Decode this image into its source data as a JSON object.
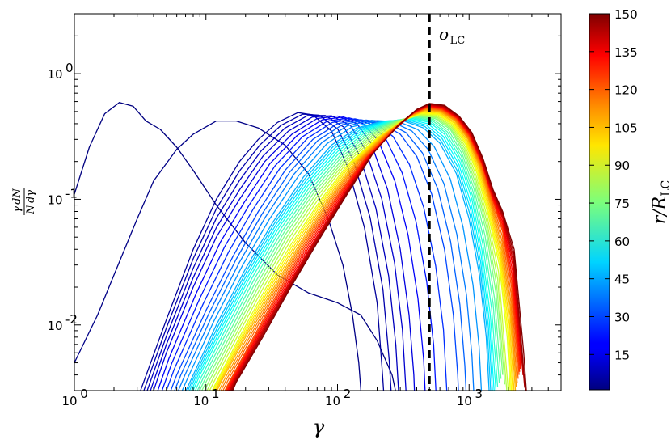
{
  "chart_data": {
    "type": "line",
    "xscale": "log",
    "yscale": "log",
    "xlim": [
      1,
      5000
    ],
    "ylim": [
      0.003,
      3
    ],
    "xlabel": "γ",
    "ylabel": "(γ/N) dN/dγ",
    "x_ticks": [
      {
        "value": 1,
        "label": "10",
        "exp": "0"
      },
      {
        "value": 10,
        "label": "10",
        "exp": "1"
      },
      {
        "value": 100,
        "label": "10",
        "exp": "2"
      },
      {
        "value": 1000,
        "label": "10",
        "exp": "3"
      }
    ],
    "y_ticks": [
      {
        "value": 0.01,
        "label": "10",
        "exp": "-2"
      },
      {
        "value": 0.1,
        "label": "10",
        "exp": "-1"
      },
      {
        "value": 1,
        "label": "10",
        "exp": "0"
      }
    ],
    "annotation": {
      "text": "σ",
      "subscript": "LC",
      "x": 500,
      "style": "dashed vertical line"
    },
    "colorbar": {
      "label": "r/R_LC",
      "label_main": "r/R",
      "label_sub": "LC",
      "colormap": "jet",
      "range": [
        1,
        150
      ],
      "ticks": [
        "15",
        "30",
        "45",
        "60",
        "75",
        "90",
        "105",
        "120",
        "135",
        "150"
      ]
    },
    "series": [
      {
        "r": 1,
        "points": [
          [
            1,
            0.11
          ],
          [
            1.3,
            0.26
          ],
          [
            1.7,
            0.48
          ],
          [
            2.2,
            0.59
          ],
          [
            2.8,
            0.55
          ],
          [
            3.5,
            0.42
          ],
          [
            4.5,
            0.36
          ],
          [
            6,
            0.26
          ],
          [
            8,
            0.17
          ],
          [
            12,
            0.09
          ],
          [
            20,
            0.045
          ],
          [
            35,
            0.025
          ],
          [
            60,
            0.018
          ],
          [
            100,
            0.015
          ],
          [
            150,
            0.012
          ],
          [
            200,
            0.0075
          ],
          [
            260,
            0.004
          ],
          [
            300,
            0.002
          ]
        ]
      },
      {
        "r": 2,
        "points": [
          [
            1,
            0.005
          ],
          [
            1.5,
            0.012
          ],
          [
            2,
            0.025
          ],
          [
            3,
            0.07
          ],
          [
            4,
            0.14
          ],
          [
            6,
            0.25
          ],
          [
            8,
            0.33
          ],
          [
            12,
            0.42
          ],
          [
            17,
            0.42
          ],
          [
            25,
            0.37
          ],
          [
            40,
            0.27
          ],
          [
            60,
            0.16
          ],
          [
            85,
            0.07
          ],
          [
            110,
            0.03
          ],
          [
            130,
            0.012
          ],
          [
            145,
            0.005
          ],
          [
            155,
            0.002
          ]
        ]
      },
      {
        "r": 5,
        "points": [
          [
            2.5,
            0.0015
          ],
          [
            5,
            0.011
          ],
          [
            8,
            0.04
          ],
          [
            12,
            0.1
          ],
          [
            18,
            0.2
          ],
          [
            25,
            0.3
          ],
          [
            35,
            0.41
          ],
          [
            50,
            0.49
          ],
          [
            65,
            0.47
          ],
          [
            90,
            0.35
          ],
          [
            120,
            0.18
          ],
          [
            160,
            0.06
          ],
          [
            200,
            0.015
          ],
          [
            220,
            0.004
          ],
          [
            240,
            0.001
          ]
        ]
      },
      {
        "r": 15,
        "points": [
          [
            3.2,
            0.0015
          ],
          [
            5,
            0.006
          ],
          [
            8,
            0.02
          ],
          [
            12,
            0.05
          ],
          [
            18,
            0.1
          ],
          [
            28,
            0.2
          ],
          [
            45,
            0.33
          ],
          [
            70,
            0.44
          ],
          [
            100,
            0.46
          ],
          [
            140,
            0.4
          ],
          [
            180,
            0.28
          ],
          [
            240,
            0.12
          ],
          [
            300,
            0.04
          ],
          [
            350,
            0.012
          ],
          [
            380,
            0.004
          ],
          [
            400,
            0.001
          ]
        ]
      },
      {
        "r": 30,
        "points": [
          [
            4.2,
            0.0015
          ],
          [
            6,
            0.004
          ],
          [
            10,
            0.013
          ],
          [
            16,
            0.035
          ],
          [
            25,
            0.08
          ],
          [
            40,
            0.17
          ],
          [
            65,
            0.3
          ],
          [
            100,
            0.4
          ],
          [
            150,
            0.43
          ],
          [
            220,
            0.4
          ],
          [
            300,
            0.33
          ],
          [
            400,
            0.22
          ],
          [
            520,
            0.11
          ],
          [
            650,
            0.04
          ],
          [
            760,
            0.012
          ],
          [
            820,
            0.004
          ],
          [
            870,
            0.001
          ]
        ]
      },
      {
        "r": 45,
        "points": [
          [
            5.2,
            0.0015
          ],
          [
            8,
            0.004
          ],
          [
            12,
            0.01
          ],
          [
            20,
            0.028
          ],
          [
            32,
            0.065
          ],
          [
            55,
            0.15
          ],
          [
            90,
            0.27
          ],
          [
            140,
            0.37
          ],
          [
            220,
            0.42
          ],
          [
            320,
            0.42
          ],
          [
            450,
            0.37
          ],
          [
            600,
            0.28
          ],
          [
            800,
            0.16
          ],
          [
            1000,
            0.07
          ],
          [
            1200,
            0.025
          ],
          [
            1350,
            0.008
          ],
          [
            1450,
            0.002
          ]
        ]
      },
      {
        "r": 60,
        "points": [
          [
            6,
            0.0015
          ],
          [
            9,
            0.004
          ],
          [
            14,
            0.01
          ],
          [
            22,
            0.025
          ],
          [
            36,
            0.06
          ],
          [
            60,
            0.13
          ],
          [
            100,
            0.24
          ],
          [
            160,
            0.35
          ],
          [
            250,
            0.42
          ],
          [
            360,
            0.44
          ],
          [
            500,
            0.41
          ],
          [
            650,
            0.33
          ],
          [
            850,
            0.2
          ],
          [
            1050,
            0.1
          ],
          [
            1250,
            0.04
          ],
          [
            1450,
            0.012
          ],
          [
            1600,
            0.003
          ]
        ]
      },
      {
        "r": 75,
        "points": [
          [
            6.8,
            0.0015
          ],
          [
            10,
            0.0035
          ],
          [
            16,
            0.009
          ],
          [
            25,
            0.022
          ],
          [
            40,
            0.052
          ],
          [
            65,
            0.11
          ],
          [
            110,
            0.21
          ],
          [
            180,
            0.33
          ],
          [
            280,
            0.42
          ],
          [
            400,
            0.46
          ],
          [
            550,
            0.44
          ],
          [
            720,
            0.36
          ],
          [
            900,
            0.24
          ],
          [
            1100,
            0.13
          ],
          [
            1350,
            0.055
          ],
          [
            1600,
            0.018
          ],
          [
            1800,
            0.004
          ]
        ]
      },
      {
        "r": 90,
        "points": [
          [
            8,
            0.0015
          ],
          [
            12,
            0.0035
          ],
          [
            18,
            0.008
          ],
          [
            28,
            0.019
          ],
          [
            45,
            0.045
          ],
          [
            75,
            0.1
          ],
          [
            120,
            0.19
          ],
          [
            200,
            0.31
          ],
          [
            310,
            0.42
          ],
          [
            430,
            0.48
          ],
          [
            580,
            0.47
          ],
          [
            750,
            0.39
          ],
          [
            950,
            0.27
          ],
          [
            1150,
            0.16
          ],
          [
            1400,
            0.075
          ],
          [
            1700,
            0.03
          ],
          [
            1950,
            0.008
          ],
          [
            2100,
            0.002
          ]
        ]
      },
      {
        "r": 105,
        "points": [
          [
            9,
            0.0015
          ],
          [
            13,
            0.0035
          ],
          [
            20,
            0.008
          ],
          [
            32,
            0.019
          ],
          [
            52,
            0.045
          ],
          [
            85,
            0.1
          ],
          [
            140,
            0.2
          ],
          [
            230,
            0.33
          ],
          [
            340,
            0.45
          ],
          [
            460,
            0.51
          ],
          [
            600,
            0.5
          ],
          [
            780,
            0.42
          ],
          [
            980,
            0.3
          ],
          [
            1200,
            0.18
          ],
          [
            1450,
            0.09
          ],
          [
            1750,
            0.04
          ],
          [
            2050,
            0.012
          ],
          [
            2250,
            0.003
          ]
        ]
      },
      {
        "r": 120,
        "points": [
          [
            10,
            0.0015
          ],
          [
            15,
            0.0035
          ],
          [
            23,
            0.008
          ],
          [
            36,
            0.019
          ],
          [
            58,
            0.045
          ],
          [
            95,
            0.1
          ],
          [
            160,
            0.21
          ],
          [
            260,
            0.35
          ],
          [
            370,
            0.48
          ],
          [
            480,
            0.54
          ],
          [
            620,
            0.52
          ],
          [
            800,
            0.44
          ],
          [
            1000,
            0.32
          ],
          [
            1250,
            0.19
          ],
          [
            1500,
            0.1
          ],
          [
            1800,
            0.055
          ],
          [
            2100,
            0.02
          ],
          [
            2400,
            0.004
          ]
        ]
      },
      {
        "r": 135,
        "points": [
          [
            11,
            0.0015
          ],
          [
            16,
            0.0035
          ],
          [
            25,
            0.008
          ],
          [
            40,
            0.019
          ],
          [
            65,
            0.045
          ],
          [
            105,
            0.1
          ],
          [
            175,
            0.22
          ],
          [
            280,
            0.37
          ],
          [
            390,
            0.5
          ],
          [
            490,
            0.56
          ],
          [
            630,
            0.54
          ],
          [
            820,
            0.45
          ],
          [
            1020,
            0.33
          ],
          [
            1250,
            0.2
          ],
          [
            1500,
            0.11
          ],
          [
            1800,
            0.07
          ],
          [
            2150,
            0.03
          ],
          [
            2500,
            0.005
          ]
        ]
      },
      {
        "r": 150,
        "points": [
          [
            12,
            0.0015
          ],
          [
            17,
            0.0035
          ],
          [
            27,
            0.008
          ],
          [
            43,
            0.019
          ],
          [
            70,
            0.045
          ],
          [
            112,
            0.1
          ],
          [
            185,
            0.23
          ],
          [
            290,
            0.39
          ],
          [
            400,
            0.52
          ],
          [
            500,
            0.58
          ],
          [
            650,
            0.56
          ],
          [
            840,
            0.46
          ],
          [
            1050,
            0.34
          ],
          [
            1280,
            0.21
          ],
          [
            1520,
            0.12
          ],
          [
            1800,
            0.08
          ],
          [
            2200,
            0.04
          ],
          [
            2600,
            0.006
          ],
          [
            2800,
            0.002
          ]
        ]
      }
    ]
  }
}
